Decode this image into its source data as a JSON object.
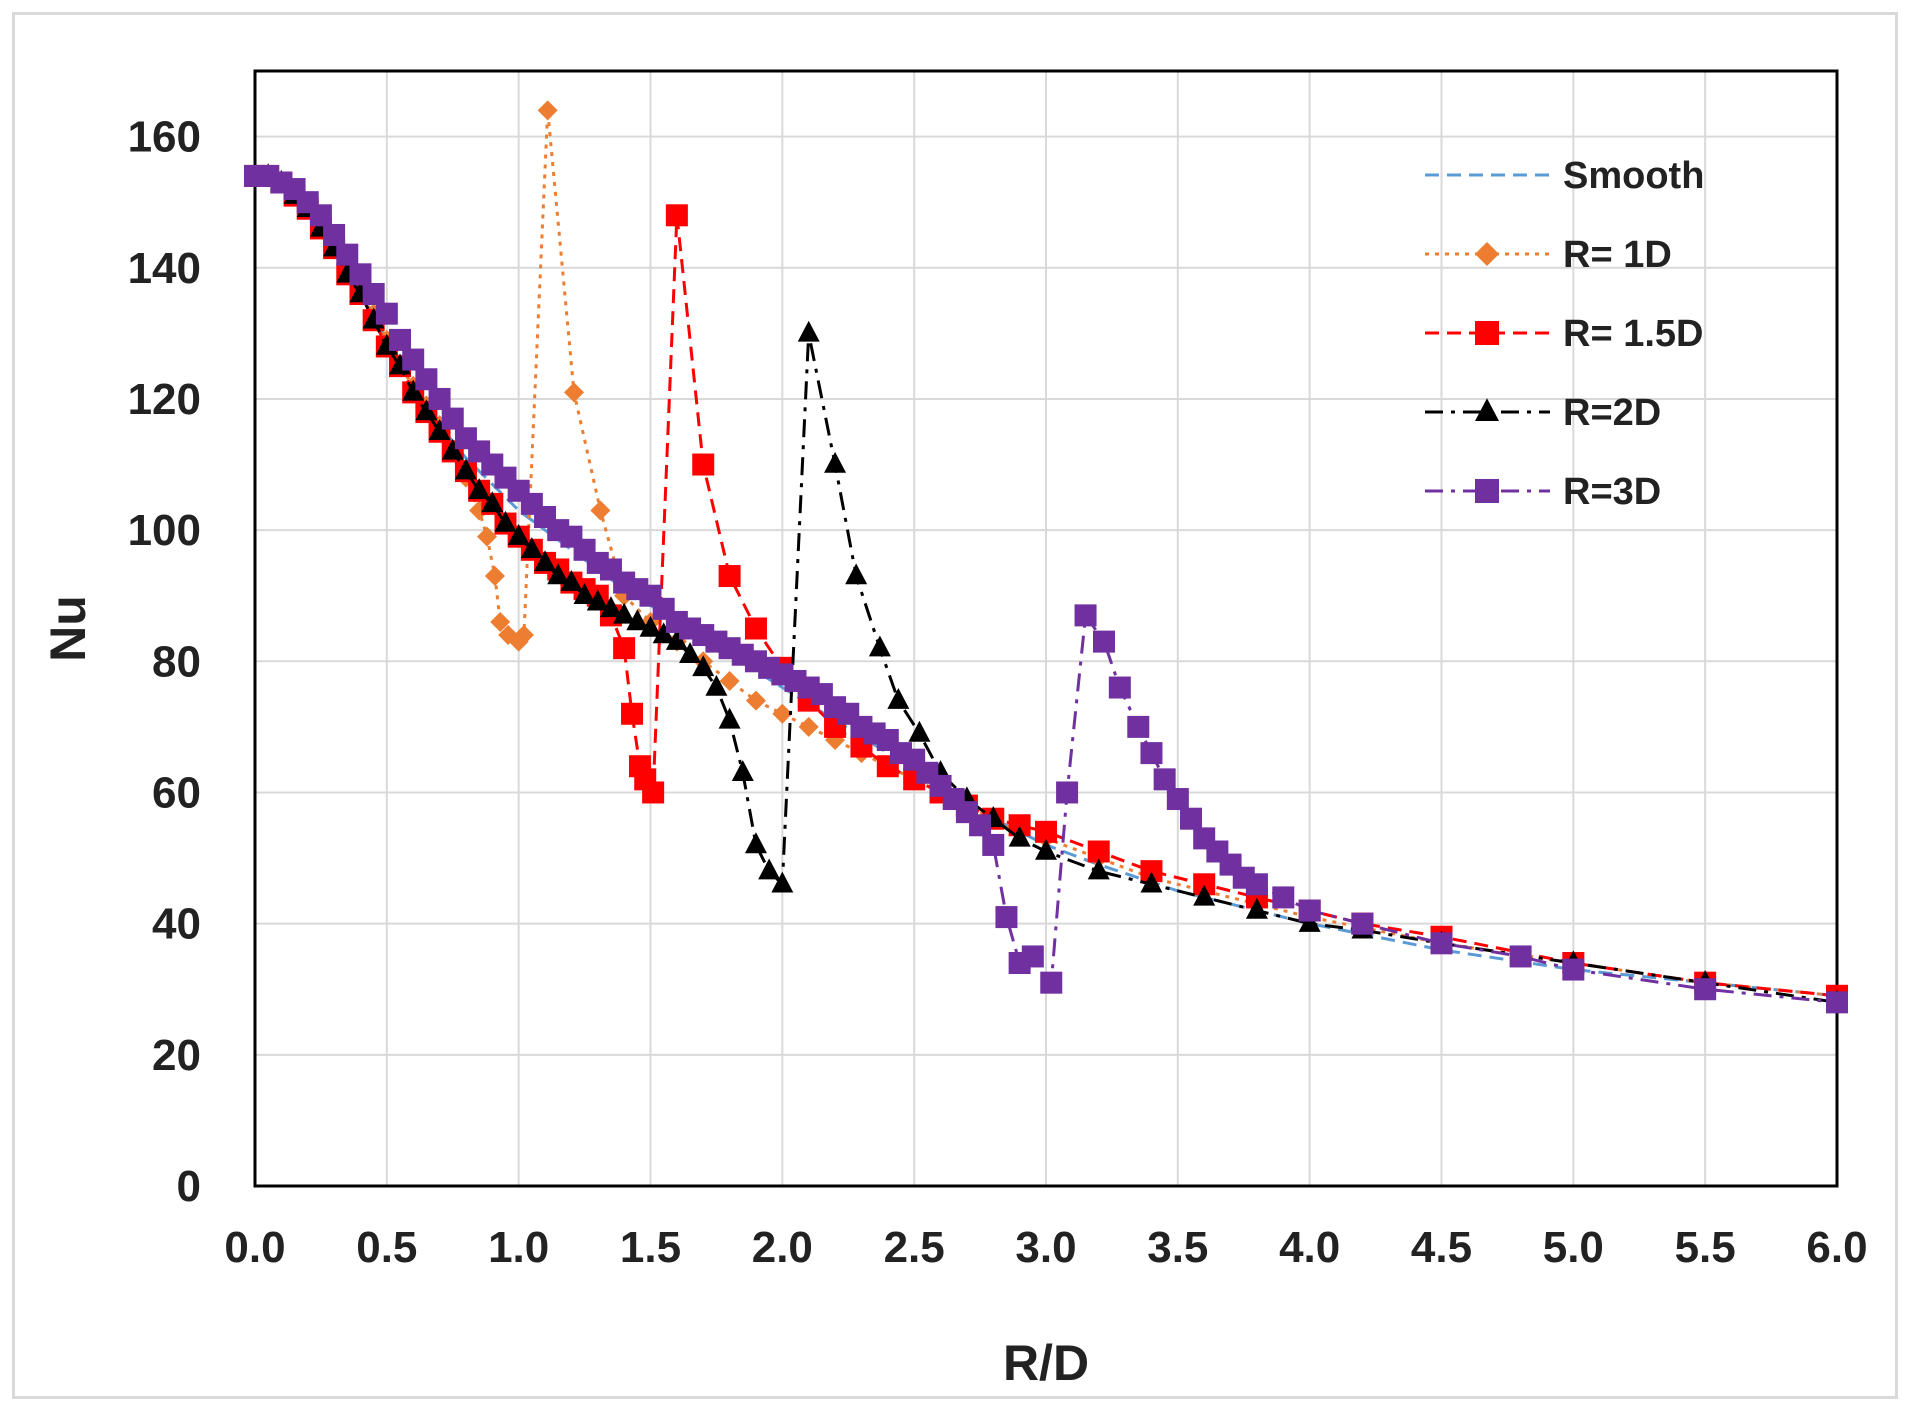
{
  "chart_data": {
    "type": "line",
    "title": "",
    "xlabel": "R/D",
    "ylabel": "Nu",
    "xlim": [
      0,
      6
    ],
    "ylim": [
      0,
      170
    ],
    "x_ticks": [
      "0.0",
      "0.5",
      "1.0",
      "1.5",
      "2.0",
      "2.5",
      "3.0",
      "3.5",
      "4.0",
      "4.5",
      "5.0",
      "5.5",
      "6.0"
    ],
    "y_ticks": [
      "0",
      "20",
      "40",
      "60",
      "80",
      "100",
      "120",
      "140",
      "160"
    ],
    "grid": true,
    "legend_position": "top-right",
    "series": [
      {
        "name": "Smooth",
        "color": "#5b9bd5",
        "marker": "none",
        "dash": "dashed",
        "points": [
          [
            0,
            154
          ],
          [
            0.1,
            153
          ],
          [
            0.2,
            149
          ],
          [
            0.3,
            143
          ],
          [
            0.4,
            136
          ],
          [
            0.5,
            129
          ],
          [
            0.6,
            122
          ],
          [
            0.7,
            116
          ],
          [
            0.8,
            111
          ],
          [
            0.9,
            107
          ],
          [
            1.0,
            103
          ],
          [
            1.2,
            97
          ],
          [
            1.4,
            91
          ],
          [
            1.6,
            86
          ],
          [
            1.8,
            81
          ],
          [
            2.0,
            76
          ],
          [
            2.2,
            71
          ],
          [
            2.4,
            66
          ],
          [
            2.6,
            61
          ],
          [
            2.8,
            56
          ],
          [
            3.0,
            52
          ],
          [
            3.2,
            49
          ],
          [
            3.5,
            45
          ],
          [
            4.0,
            40
          ],
          [
            4.5,
            36
          ],
          [
            5.0,
            33
          ],
          [
            5.5,
            31
          ],
          [
            6.0,
            29
          ]
        ]
      },
      {
        "name": "R= 1D",
        "color": "#ed7d31",
        "marker": "diamond",
        "dash": "dotted",
        "points": [
          [
            0,
            154
          ],
          [
            0.05,
            154
          ],
          [
            0.1,
            153
          ],
          [
            0.15,
            151
          ],
          [
            0.2,
            149
          ],
          [
            0.25,
            146
          ],
          [
            0.3,
            143
          ],
          [
            0.35,
            140
          ],
          [
            0.4,
            136
          ],
          [
            0.45,
            133
          ],
          [
            0.5,
            129
          ],
          [
            0.55,
            125
          ],
          [
            0.6,
            122
          ],
          [
            0.65,
            119
          ],
          [
            0.7,
            116
          ],
          [
            0.75,
            112
          ],
          [
            0.8,
            108
          ],
          [
            0.85,
            103
          ],
          [
            0.88,
            99
          ],
          [
            0.91,
            93
          ],
          [
            0.93,
            86
          ],
          [
            0.96,
            84
          ],
          [
            1.0,
            83
          ],
          [
            1.02,
            84
          ],
          [
            1.11,
            164
          ],
          [
            1.21,
            121
          ],
          [
            1.31,
            103
          ],
          [
            1.4,
            90
          ],
          [
            1.5,
            86
          ],
          [
            1.6,
            83
          ],
          [
            1.7,
            80
          ],
          [
            1.8,
            77
          ],
          [
            1.9,
            74
          ],
          [
            2.0,
            72
          ],
          [
            2.1,
            70
          ],
          [
            2.2,
            68
          ],
          [
            2.3,
            66
          ],
          [
            2.4,
            64
          ],
          [
            2.5,
            62
          ],
          [
            2.6,
            60
          ],
          [
            2.7,
            58
          ],
          [
            2.8,
            56
          ],
          [
            2.9,
            54
          ],
          [
            3.0,
            53
          ],
          [
            3.2,
            50
          ],
          [
            3.4,
            47
          ],
          [
            3.6,
            45
          ],
          [
            3.8,
            43
          ],
          [
            4.0,
            41
          ],
          [
            4.5,
            37
          ],
          [
            5.0,
            34
          ],
          [
            5.5,
            31
          ],
          [
            6.0,
            29
          ]
        ]
      },
      {
        "name": "R= 1.5D",
        "color": "#ff0000",
        "marker": "square",
        "dash": "dashed",
        "points": [
          [
            0,
            154
          ],
          [
            0.05,
            154
          ],
          [
            0.1,
            153
          ],
          [
            0.15,
            151
          ],
          [
            0.2,
            149
          ],
          [
            0.25,
            146
          ],
          [
            0.3,
            143
          ],
          [
            0.35,
            139
          ],
          [
            0.4,
            136
          ],
          [
            0.45,
            132
          ],
          [
            0.5,
            128
          ],
          [
            0.55,
            125
          ],
          [
            0.6,
            121
          ],
          [
            0.65,
            118
          ],
          [
            0.7,
            115
          ],
          [
            0.75,
            112
          ],
          [
            0.8,
            109
          ],
          [
            0.85,
            106
          ],
          [
            0.9,
            104
          ],
          [
            0.95,
            101
          ],
          [
            1.0,
            99
          ],
          [
            1.05,
            97
          ],
          [
            1.1,
            95
          ],
          [
            1.15,
            94
          ],
          [
            1.2,
            92
          ],
          [
            1.25,
            91
          ],
          [
            1.3,
            90
          ],
          [
            1.35,
            87
          ],
          [
            1.4,
            82
          ],
          [
            1.43,
            72
          ],
          [
            1.46,
            64
          ],
          [
            1.48,
            62
          ],
          [
            1.51,
            60
          ],
          [
            1.6,
            148
          ],
          [
            1.7,
            110
          ],
          [
            1.8,
            93
          ],
          [
            1.9,
            85
          ],
          [
            2.0,
            79
          ],
          [
            2.1,
            74
          ],
          [
            2.2,
            70
          ],
          [
            2.3,
            67
          ],
          [
            2.4,
            64
          ],
          [
            2.5,
            62
          ],
          [
            2.6,
            60
          ],
          [
            2.7,
            58
          ],
          [
            2.8,
            56
          ],
          [
            2.9,
            55
          ],
          [
            3.0,
            54
          ],
          [
            3.2,
            51
          ],
          [
            3.4,
            48
          ],
          [
            3.6,
            46
          ],
          [
            3.8,
            44
          ],
          [
            4.0,
            42
          ],
          [
            4.2,
            40
          ],
          [
            4.5,
            38
          ],
          [
            5.0,
            34
          ],
          [
            5.5,
            31
          ],
          [
            6.0,
            29
          ]
        ]
      },
      {
        "name": "R=2D",
        "color": "#000000",
        "marker": "triangle",
        "dash": "dashdot",
        "points": [
          [
            0,
            154
          ],
          [
            0.05,
            154
          ],
          [
            0.1,
            153
          ],
          [
            0.15,
            151
          ],
          [
            0.2,
            149
          ],
          [
            0.25,
            146
          ],
          [
            0.3,
            143
          ],
          [
            0.35,
            139
          ],
          [
            0.4,
            136
          ],
          [
            0.45,
            132
          ],
          [
            0.5,
            128
          ],
          [
            0.55,
            125
          ],
          [
            0.6,
            121
          ],
          [
            0.65,
            118
          ],
          [
            0.7,
            115
          ],
          [
            0.75,
            112
          ],
          [
            0.8,
            109
          ],
          [
            0.85,
            106
          ],
          [
            0.9,
            104
          ],
          [
            0.95,
            101
          ],
          [
            1.0,
            99
          ],
          [
            1.05,
            97
          ],
          [
            1.1,
            95
          ],
          [
            1.15,
            93
          ],
          [
            1.2,
            92
          ],
          [
            1.25,
            90
          ],
          [
            1.3,
            89
          ],
          [
            1.35,
            88
          ],
          [
            1.4,
            87
          ],
          [
            1.45,
            86
          ],
          [
            1.5,
            85
          ],
          [
            1.55,
            84
          ],
          [
            1.6,
            83
          ],
          [
            1.65,
            81
          ],
          [
            1.7,
            79
          ],
          [
            1.75,
            76
          ],
          [
            1.8,
            71
          ],
          [
            1.85,
            63
          ],
          [
            1.9,
            52
          ],
          [
            1.95,
            48
          ],
          [
            2.0,
            46
          ],
          [
            2.1,
            130
          ],
          [
            2.2,
            110
          ],
          [
            2.28,
            93
          ],
          [
            2.37,
            82
          ],
          [
            2.44,
            74
          ],
          [
            2.52,
            69
          ],
          [
            2.6,
            63
          ],
          [
            2.7,
            59
          ],
          [
            2.8,
            56
          ],
          [
            2.9,
            53
          ],
          [
            3.0,
            51
          ],
          [
            3.2,
            48
          ],
          [
            3.4,
            46
          ],
          [
            3.6,
            44
          ],
          [
            3.8,
            42
          ],
          [
            4.0,
            40
          ],
          [
            4.2,
            39
          ],
          [
            4.5,
            37
          ],
          [
            5.0,
            34
          ],
          [
            5.5,
            31
          ],
          [
            6.0,
            28
          ]
        ]
      },
      {
        "name": "R=3D",
        "color": "#7030a0",
        "marker": "square",
        "dash": "dashdot",
        "points": [
          [
            0,
            154
          ],
          [
            0.05,
            154
          ],
          [
            0.1,
            153
          ],
          [
            0.15,
            152
          ],
          [
            0.2,
            150
          ],
          [
            0.25,
            148
          ],
          [
            0.3,
            145
          ],
          [
            0.35,
            142
          ],
          [
            0.4,
            139
          ],
          [
            0.45,
            136
          ],
          [
            0.5,
            133
          ],
          [
            0.55,
            129
          ],
          [
            0.6,
            126
          ],
          [
            0.65,
            123
          ],
          [
            0.7,
            120
          ],
          [
            0.75,
            117
          ],
          [
            0.8,
            114
          ],
          [
            0.85,
            112
          ],
          [
            0.9,
            110
          ],
          [
            0.95,
            108
          ],
          [
            1.0,
            106
          ],
          [
            1.05,
            104
          ],
          [
            1.1,
            102
          ],
          [
            1.15,
            100
          ],
          [
            1.2,
            99
          ],
          [
            1.25,
            97
          ],
          [
            1.3,
            95
          ],
          [
            1.35,
            94
          ],
          [
            1.4,
            92
          ],
          [
            1.45,
            91
          ],
          [
            1.5,
            90
          ],
          [
            1.55,
            88
          ],
          [
            1.6,
            86
          ],
          [
            1.65,
            85
          ],
          [
            1.7,
            84
          ],
          [
            1.75,
            83
          ],
          [
            1.8,
            82
          ],
          [
            1.85,
            81
          ],
          [
            1.9,
            80
          ],
          [
            1.95,
            79
          ],
          [
            2.0,
            78
          ],
          [
            2.05,
            77
          ],
          [
            2.1,
            76
          ],
          [
            2.15,
            75
          ],
          [
            2.2,
            73
          ],
          [
            2.25,
            72
          ],
          [
            2.3,
            70
          ],
          [
            2.35,
            69
          ],
          [
            2.4,
            68
          ],
          [
            2.45,
            66
          ],
          [
            2.5,
            65
          ],
          [
            2.55,
            63
          ],
          [
            2.6,
            61
          ],
          [
            2.65,
            59
          ],
          [
            2.7,
            57
          ],
          [
            2.75,
            55
          ],
          [
            2.8,
            52
          ],
          [
            2.85,
            41
          ],
          [
            2.9,
            34
          ],
          [
            2.95,
            35
          ],
          [
            3.02,
            31
          ],
          [
            3.08,
            60
          ],
          [
            3.15,
            87
          ],
          [
            3.22,
            83
          ],
          [
            3.28,
            76
          ],
          [
            3.35,
            70
          ],
          [
            3.4,
            66
          ],
          [
            3.45,
            62
          ],
          [
            3.5,
            59
          ],
          [
            3.55,
            56
          ],
          [
            3.6,
            53
          ],
          [
            3.65,
            51
          ],
          [
            3.7,
            49
          ],
          [
            3.75,
            47
          ],
          [
            3.8,
            46
          ],
          [
            3.9,
            44
          ],
          [
            4.0,
            42
          ],
          [
            4.2,
            40
          ],
          [
            4.5,
            37
          ],
          [
            4.8,
            35
          ],
          [
            5.0,
            33
          ],
          [
            5.5,
            30
          ],
          [
            6.0,
            28
          ]
        ]
      }
    ]
  }
}
